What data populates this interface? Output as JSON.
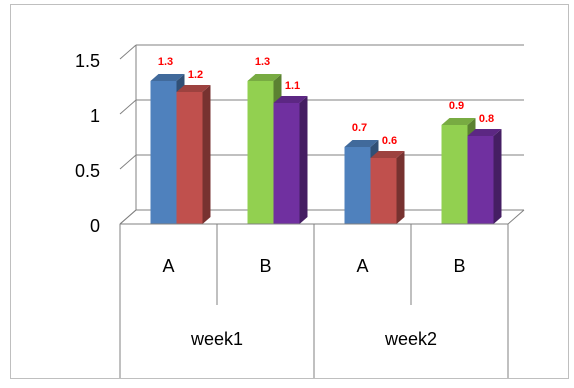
{
  "chart_data": {
    "type": "bar",
    "style": "3d-clustered-column",
    "categories": [
      {
        "group": "week1",
        "sub": "A",
        "values": [
          1.3,
          1.2
        ],
        "colors": [
          "#4f81bd",
          "#c0504d"
        ]
      },
      {
        "group": "week1",
        "sub": "B",
        "values": [
          1.3,
          1.1
        ],
        "colors": [
          "#92d050",
          "#7030a0"
        ]
      },
      {
        "group": "week2",
        "sub": "A",
        "values": [
          0.7,
          0.6
        ],
        "colors": [
          "#4f81bd",
          "#c0504d"
        ]
      },
      {
        "group": "week2",
        "sub": "B",
        "values": [
          0.9,
          0.8
        ],
        "colors": [
          "#92d050",
          "#7030a0"
        ]
      }
    ],
    "groups": [
      "week1",
      "week2"
    ],
    "data_labels": [
      [
        "1.3",
        "1.2"
      ],
      [
        "1.3",
        "1.1"
      ],
      [
        "0.7",
        "0.6"
      ],
      [
        "0.9",
        "0.8"
      ]
    ],
    "y_ticks": [
      "0",
      "0.5",
      "1",
      "1.5"
    ],
    "ylim": [
      0,
      1.5
    ],
    "grid": true,
    "legend": "none",
    "data_label_color": "#ff0000"
  }
}
